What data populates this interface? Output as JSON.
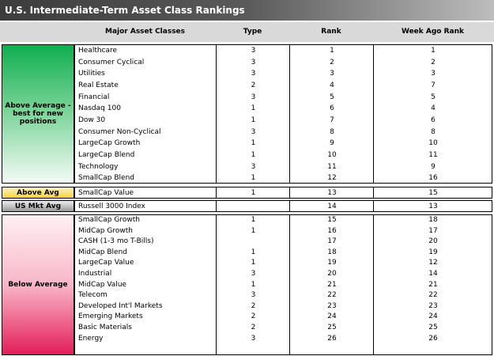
{
  "title": "U.S. Intermediate-Term Asset Class Rankings",
  "headers": {
    "classes": "Major Asset Classes",
    "type": "Type",
    "rank": "Rank",
    "week": "Week Ago Rank"
  },
  "sections": [
    {
      "label": "Above Average - best for new positions",
      "color": "#0fae4f",
      "rows": [
        [
          "Healthcare",
          "3",
          "1",
          "1"
        ],
        [
          "Consumer Cyclical",
          "3",
          "2",
          "2"
        ],
        [
          "Utilities",
          "3",
          "3",
          "3"
        ],
        [
          "Real Estate",
          "2",
          "4",
          "7"
        ],
        [
          "Financial",
          "3",
          "5",
          "5"
        ],
        [
          "Nasdaq 100",
          "1",
          "6",
          "4"
        ],
        [
          "Dow 30",
          "1",
          "7",
          "6"
        ],
        [
          "Consumer Non-Cyclical",
          "3",
          "8",
          "8"
        ],
        [
          "LargeCap Growth",
          "1",
          "9",
          "10"
        ],
        [
          "LargeCap Blend",
          "1",
          "10",
          "11"
        ],
        [
          "Technology",
          "3",
          "11",
          "9"
        ],
        [
          "SmallCap Blend",
          "1",
          "12",
          "16"
        ]
      ]
    },
    {
      "label": "Above Avg",
      "color": "#f5d343",
      "rows": [
        [
          "SmallCap Value",
          "1",
          "13",
          "15"
        ]
      ]
    },
    {
      "label": "US Mkt Avg",
      "color": "#9a9a9a",
      "rows": [
        [
          "Russell 3000 Index",
          "",
          "14",
          "13"
        ]
      ]
    },
    {
      "label": "Below Average",
      "color": "#e31e5a",
      "rows": [
        [
          "SmallCap Growth",
          "1",
          "15",
          "18"
        ],
        [
          "MidCap Growth",
          "1",
          "16",
          "17"
        ],
        [
          "CASH (1-3 mo T-Bills)",
          "",
          "17",
          "20"
        ],
        [
          "MidCap Blend",
          "1",
          "18",
          "19"
        ],
        [
          "LargeCap Value",
          "1",
          "19",
          "12"
        ],
        [
          "Industrial",
          "3",
          "20",
          "14"
        ],
        [
          "MidCap Value",
          "1",
          "21",
          "21"
        ],
        [
          "Telecom",
          "3",
          "22",
          "22"
        ],
        [
          "Developed Int'l Markets",
          "2",
          "23",
          "23"
        ],
        [
          "Emerging Markets",
          "2",
          "24",
          "24"
        ],
        [
          "Basic Materials",
          "2",
          "25",
          "25"
        ],
        [
          "Energy",
          "3",
          "26",
          "26"
        ]
      ]
    }
  ]
}
